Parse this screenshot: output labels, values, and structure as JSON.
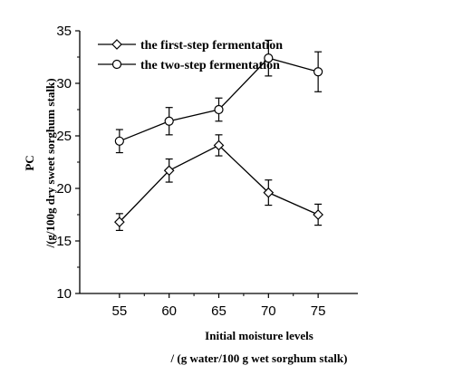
{
  "chart_data": {
    "type": "line",
    "x": [
      55,
      60,
      65,
      70,
      75
    ],
    "xlim": [
      51,
      79
    ],
    "ylim": [
      10,
      35
    ],
    "xticks": [
      55,
      60,
      65,
      70,
      75
    ],
    "yticks": [
      10,
      15,
      20,
      25,
      30,
      35
    ],
    "xlabel_line1": "Initial moisture levels",
    "xlabel_line2": "/ (g water/100 g wet sorghum stalk)",
    "ylabel_line1": "PC",
    "ylabel_line2": "/(g/100g dry sweet sorghum stalk)",
    "legend_position": "top-left",
    "grid": false,
    "series": [
      {
        "name": "the first-step fermentation",
        "marker": "diamond",
        "values": [
          16.8,
          21.7,
          24.1,
          19.6,
          17.5
        ],
        "errors": [
          0.8,
          1.1,
          1.0,
          1.2,
          1.0
        ]
      },
      {
        "name": "the two-step fermentation",
        "marker": "circle",
        "values": [
          24.5,
          26.4,
          27.5,
          32.4,
          31.1
        ],
        "errors": [
          1.1,
          1.3,
          1.1,
          1.7,
          1.9
        ]
      }
    ]
  }
}
